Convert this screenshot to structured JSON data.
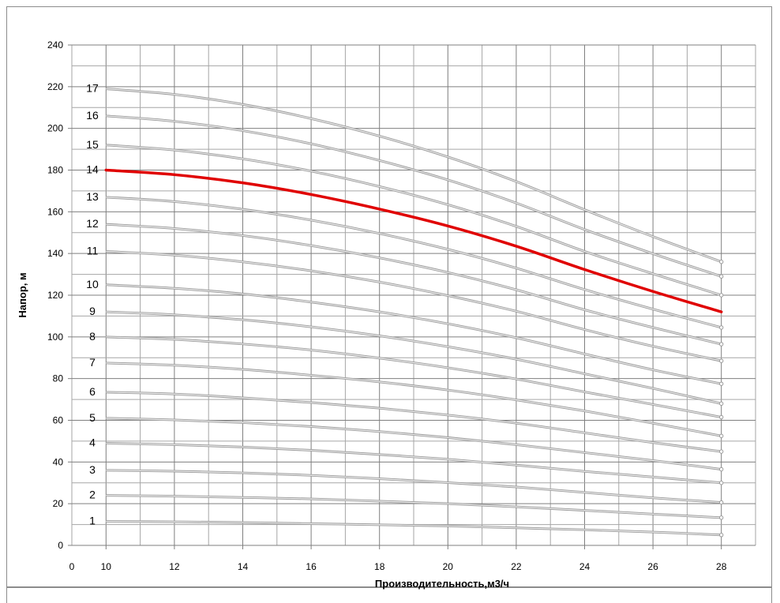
{
  "chart_data": {
    "type": "line",
    "xlabel": "Производительность,м3/ч",
    "ylabel": "Напор, м",
    "xlim": [
      9,
      29
    ],
    "ylim": [
      0,
      240
    ],
    "x_origin_label": "0",
    "x_ticks": [
      10,
      12,
      14,
      16,
      18,
      20,
      22,
      24,
      26,
      28
    ],
    "y_ticks": [
      0,
      20,
      40,
      60,
      80,
      100,
      120,
      140,
      160,
      180,
      200,
      220,
      240
    ],
    "grid": true,
    "highlight_color": "#e00000",
    "curve_color": "#b4b4b4",
    "x": [
      10,
      12,
      14,
      16,
      18,
      20,
      22,
      24,
      26,
      28
    ],
    "series": [
      {
        "name": "1",
        "values": [
          11.5,
          11.3,
          11.0,
          10.4,
          9.9,
          9.3,
          8.4,
          7.5,
          6.4,
          5.0
        ]
      },
      {
        "name": "2",
        "values": [
          24.0,
          23.6,
          23.0,
          22.3,
          21.2,
          20.0,
          18.5,
          16.8,
          15.0,
          13.3
        ]
      },
      {
        "name": "3",
        "values": [
          36.0,
          35.6,
          34.8,
          33.6,
          32.0,
          30.1,
          28.0,
          25.4,
          22.8,
          20.6
        ]
      },
      {
        "name": "4",
        "values": [
          49.0,
          48.3,
          47.2,
          45.6,
          43.6,
          41.3,
          38.5,
          35.5,
          32.8,
          30.0
        ]
      },
      {
        "name": "5",
        "values": [
          61.0,
          60.2,
          58.9,
          57.0,
          54.6,
          51.7,
          48.3,
          44.5,
          40.7,
          36.5
        ]
      },
      {
        "name": "6",
        "values": [
          73.5,
          72.6,
          70.8,
          68.5,
          65.8,
          62.5,
          58.6,
          54.0,
          49.3,
          45.0
        ]
      },
      {
        "name": "7",
        "values": [
          87.5,
          86.4,
          84.4,
          81.6,
          78.4,
          74.5,
          69.8,
          64.5,
          58.6,
          52.5
        ]
      },
      {
        "name": "8",
        "values": [
          100.0,
          98.8,
          96.6,
          93.7,
          89.8,
          85.2,
          79.8,
          73.6,
          67.6,
          61.5
        ]
      },
      {
        "name": "9",
        "values": [
          112.0,
          110.6,
          108.2,
          104.8,
          100.5,
          95.3,
          89.3,
          82.3,
          75.3,
          68.0
        ]
      },
      {
        "name": "10",
        "values": [
          125.0,
          123.3,
          120.6,
          116.7,
          112.0,
          106.3,
          99.6,
          91.8,
          84.2,
          77.5
        ]
      },
      {
        "name": "11",
        "values": [
          141.0,
          139.2,
          136.0,
          131.7,
          126.3,
          119.8,
          112.3,
          103.5,
          95.5,
          88.5
        ]
      },
      {
        "name": "12",
        "values": [
          154.0,
          152.0,
          148.6,
          143.8,
          137.9,
          130.9,
          122.6,
          113.0,
          104.5,
          96.5
        ]
      },
      {
        "name": "13",
        "values": [
          167.0,
          164.9,
          161.2,
          156.0,
          149.6,
          142.0,
          133.0,
          122.7,
          113.3,
          104.5
        ]
      },
      {
        "name": "14",
        "values": [
          180.0,
          177.8,
          173.9,
          168.3,
          161.3,
          153.2,
          143.5,
          132.3,
          121.8,
          112.0
        ],
        "highlight": true
      },
      {
        "name": "15",
        "values": [
          192.0,
          189.6,
          185.4,
          179.5,
          172.1,
          163.4,
          153.0,
          141.0,
          130.3,
          120.0
        ]
      },
      {
        "name": "16",
        "values": [
          206.0,
          203.4,
          198.9,
          192.6,
          184.6,
          175.3,
          164.2,
          151.5,
          139.9,
          129.0
        ]
      },
      {
        "name": "17",
        "values": [
          219.0,
          216.3,
          211.5,
          204.7,
          196.3,
          186.3,
          174.5,
          161.0,
          148.1,
          136.0
        ]
      }
    ]
  }
}
